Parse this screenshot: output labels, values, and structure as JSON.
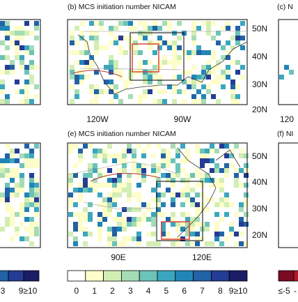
{
  "panels": [
    {
      "title": "(b) MCS initiation number NICAM",
      "lat_labels": [
        "50N",
        "40N",
        "30N",
        "20N"
      ],
      "lon_labels": [
        "120W",
        "90W"
      ]
    },
    {
      "title": "(e) MCS initiation number NICAM",
      "lat_labels": [
        "50N",
        "40N",
        "30N",
        "20N"
      ],
      "lon_labels": [
        "90E",
        "120E"
      ]
    }
  ],
  "partial_panels": {
    "top_right_title": "(c) N",
    "bottom_right_title": "(f) NI",
    "top_right_lon": "120"
  },
  "colorbar": {
    "labels": [
      "0",
      "1",
      "2",
      "3",
      "4",
      "5",
      "6",
      "7",
      "8",
      "9≥10"
    ],
    "colors": [
      "#ffffff",
      "#fdfdc9",
      "#d3eeb4",
      "#a6dcb5",
      "#6cc3b8",
      "#3ba6bf",
      "#2285b8",
      "#2262a6",
      "#243c93",
      "#1b1d66"
    ]
  },
  "left_colorbar": {
    "labels": [
      "3",
      "9≥10"
    ]
  },
  "right_colorbar": {
    "labels": [
      "≤-5",
      "-"
    ]
  }
}
